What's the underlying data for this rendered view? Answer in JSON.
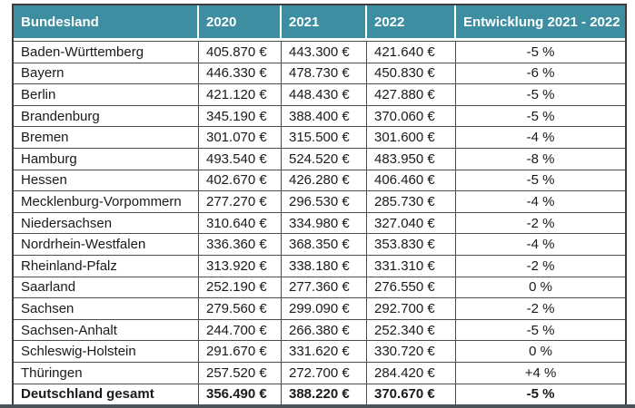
{
  "colors": {
    "header_bg": "#3e8ea1",
    "header_text": "#ffffff",
    "grid_line": "#4d4d4d",
    "body_text": "#1a1a1a",
    "bottom_bar": "#4b5358"
  },
  "table": {
    "headers": [
      "Bundesland",
      "2020",
      "2021",
      "2022",
      "Entwicklung 2021 - 2022"
    ],
    "rows": [
      {
        "land": "Baden-Württemberg",
        "y2020": "405.870 €",
        "y2021": "443.300 €",
        "y2022": "421.640 €",
        "dev": "-5 %"
      },
      {
        "land": "Bayern",
        "y2020": "446.330 €",
        "y2021": "478.730 €",
        "y2022": "450.830 €",
        "dev": "-6 %"
      },
      {
        "land": "Berlin",
        "y2020": "421.120 €",
        "y2021": "448.430 €",
        "y2022": "427.880 €",
        "dev": "-5 %"
      },
      {
        "land": "Brandenburg",
        "y2020": "345.190 €",
        "y2021": "388.400 €",
        "y2022": "370.060 €",
        "dev": "-5 %"
      },
      {
        "land": "Bremen",
        "y2020": "301.070 €",
        "y2021": "315.500 €",
        "y2022": "301.600 €",
        "dev": "-4 %"
      },
      {
        "land": "Hamburg",
        "y2020": "493.540 €",
        "y2021": "524.520 €",
        "y2022": "483.950 €",
        "dev": "-8 %"
      },
      {
        "land": "Hessen",
        "y2020": "402.670 €",
        "y2021": "426.280 €",
        "y2022": "406.460 €",
        "dev": "-5 %"
      },
      {
        "land": "Mecklenburg-Vorpommern",
        "y2020": "277.270 €",
        "y2021": "296.530 €",
        "y2022": "285.730 €",
        "dev": "-4 %"
      },
      {
        "land": "Niedersachsen",
        "y2020": "310.640 €",
        "y2021": "334.980 €",
        "y2022": "327.040 €",
        "dev": "-2 %"
      },
      {
        "land": "Nordrhein-Westfalen",
        "y2020": "336.360 €",
        "y2021": "368.350 €",
        "y2022": "353.830 €",
        "dev": "-4 %"
      },
      {
        "land": "Rheinland-Pfalz",
        "y2020": "313.920 €",
        "y2021": "338.180 €",
        "y2022": "331.310 €",
        "dev": "-2 %"
      },
      {
        "land": "Saarland",
        "y2020": "252.190 €",
        "y2021": "277.360 €",
        "y2022": "276.550 €",
        "dev": "0 %"
      },
      {
        "land": "Sachsen",
        "y2020": "279.560 €",
        "y2021": "299.090 €",
        "y2022": "292.700 €",
        "dev": "-2 %"
      },
      {
        "land": "Sachsen-Anhalt",
        "y2020": "244.700 €",
        "y2021": "266.380 €",
        "y2022": "252.340 €",
        "dev": "-5 %"
      },
      {
        "land": "Schleswig-Holstein",
        "y2020": "291.670 €",
        "y2021": "331.620 €",
        "y2022": "330.720 €",
        "dev": "0 %"
      },
      {
        "land": "Thüringen",
        "y2020": "257.520 €",
        "y2021": "272.700 €",
        "y2022": "284.420 €",
        "dev": "+4 %"
      }
    ],
    "total_row": {
      "land": "Deutschland gesamt",
      "y2020": "356.490 €",
      "y2021": "388.220 €",
      "y2022": "370.670 €",
      "dev": "-5 %"
    }
  },
  "chart_data": {
    "type": "table",
    "title": "",
    "columns": [
      "Bundesland",
      "2020",
      "2021",
      "2022",
      "Entwicklung 2021 - 2022"
    ],
    "unit": "EUR",
    "rows": [
      [
        "Baden-Württemberg",
        405870,
        443300,
        421640,
        "-5 %"
      ],
      [
        "Bayern",
        446330,
        478730,
        450830,
        "-6 %"
      ],
      [
        "Berlin",
        421120,
        448430,
        427880,
        "-5 %"
      ],
      [
        "Brandenburg",
        345190,
        388400,
        370060,
        "-5 %"
      ],
      [
        "Bremen",
        301070,
        315500,
        301600,
        "-4 %"
      ],
      [
        "Hamburg",
        493540,
        524520,
        483950,
        "-8 %"
      ],
      [
        "Hessen",
        402670,
        426280,
        406460,
        "-5 %"
      ],
      [
        "Mecklenburg-Vorpommern",
        277270,
        296530,
        285730,
        "-4 %"
      ],
      [
        "Niedersachsen",
        310640,
        334980,
        327040,
        "-2 %"
      ],
      [
        "Nordrhein-Westfalen",
        336360,
        368350,
        353830,
        "-4 %"
      ],
      [
        "Rheinland-Pfalz",
        313920,
        338180,
        331310,
        "-2 %"
      ],
      [
        "Saarland",
        252190,
        277360,
        276550,
        "0 %"
      ],
      [
        "Sachsen",
        279560,
        299090,
        292700,
        "-2 %"
      ],
      [
        "Sachsen-Anhalt",
        244700,
        266380,
        252340,
        "-5 %"
      ],
      [
        "Schleswig-Holstein",
        291670,
        331620,
        330720,
        "0 %"
      ],
      [
        "Thüringen",
        257520,
        272700,
        284420,
        "+4 %"
      ],
      [
        "Deutschland gesamt",
        356490,
        388220,
        370670,
        "-5 %"
      ]
    ]
  }
}
